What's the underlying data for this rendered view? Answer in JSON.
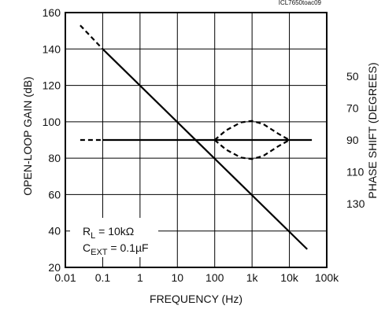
{
  "chart_data": {
    "type": "line",
    "figure_id": "ICL7650toac09",
    "xlabel": "FREQUENCY (Hz)",
    "ylabel_left": "OPEN-LOOP GAIN (dB)",
    "ylabel_right": "PHASE SHIFT (DEGREES)",
    "x_scale": "log",
    "xlim": [
      0.01,
      100000
    ],
    "ylim": [
      20,
      160
    ],
    "phase_lim": [
      170,
      10
    ],
    "x_ticks": [
      {
        "value": 0.01,
        "label": "0.01"
      },
      {
        "value": 0.1,
        "label": "0.1"
      },
      {
        "value": 1,
        "label": "1"
      },
      {
        "value": 10,
        "label": "10"
      },
      {
        "value": 100,
        "label": "100"
      },
      {
        "value": 1000,
        "label": "1k"
      },
      {
        "value": 10000,
        "label": "10k"
      },
      {
        "value": 100000,
        "label": "100k"
      }
    ],
    "y_ticks": [
      {
        "value": 20,
        "label": "20"
      },
      {
        "value": 40,
        "label": "40"
      },
      {
        "value": 60,
        "label": "60"
      },
      {
        "value": 80,
        "label": "80"
      },
      {
        "value": 100,
        "label": "100"
      },
      {
        "value": 120,
        "label": "120"
      },
      {
        "value": 140,
        "label": "140"
      },
      {
        "value": 160,
        "label": "160"
      }
    ],
    "phase_ticks": [
      {
        "value": 50,
        "label": "50"
      },
      {
        "value": 70,
        "label": "70"
      },
      {
        "value": 90,
        "label": "90"
      },
      {
        "value": 110,
        "label": "110"
      },
      {
        "value": 130,
        "label": "130"
      }
    ],
    "grid": true,
    "conditions": [
      "RL = 10kΩ",
      "CEXT = 0.1µF"
    ],
    "conditions_position": "bottom-left",
    "series": [
      {
        "axis": "gain",
        "style": "dashed",
        "x": [
          0.025,
          0.1
        ],
        "y": [
          153,
          140
        ]
      },
      {
        "axis": "gain",
        "style": "solid",
        "x": [
          0.1,
          30000
        ],
        "y": [
          140,
          30
        ]
      },
      {
        "axis": "phase",
        "style": "dashed",
        "x": [
          0.025,
          0.1
        ],
        "y": [
          90,
          90
        ]
      },
      {
        "axis": "phase",
        "style": "solid",
        "x": [
          0.1,
          40000
        ],
        "y": [
          90,
          90
        ]
      },
      {
        "axis": "phase",
        "style": "dashed",
        "x": [
          100,
          200,
          500,
          1000,
          2000,
          5000,
          10000
        ],
        "y": [
          90,
          84,
          79,
          78,
          80,
          86,
          90
        ]
      },
      {
        "axis": "phase",
        "style": "dashed",
        "x": [
          100,
          200,
          500,
          1000,
          2000,
          5000,
          10000
        ],
        "y": [
          90,
          96,
          101,
          102,
          100,
          94,
          90
        ]
      }
    ]
  }
}
